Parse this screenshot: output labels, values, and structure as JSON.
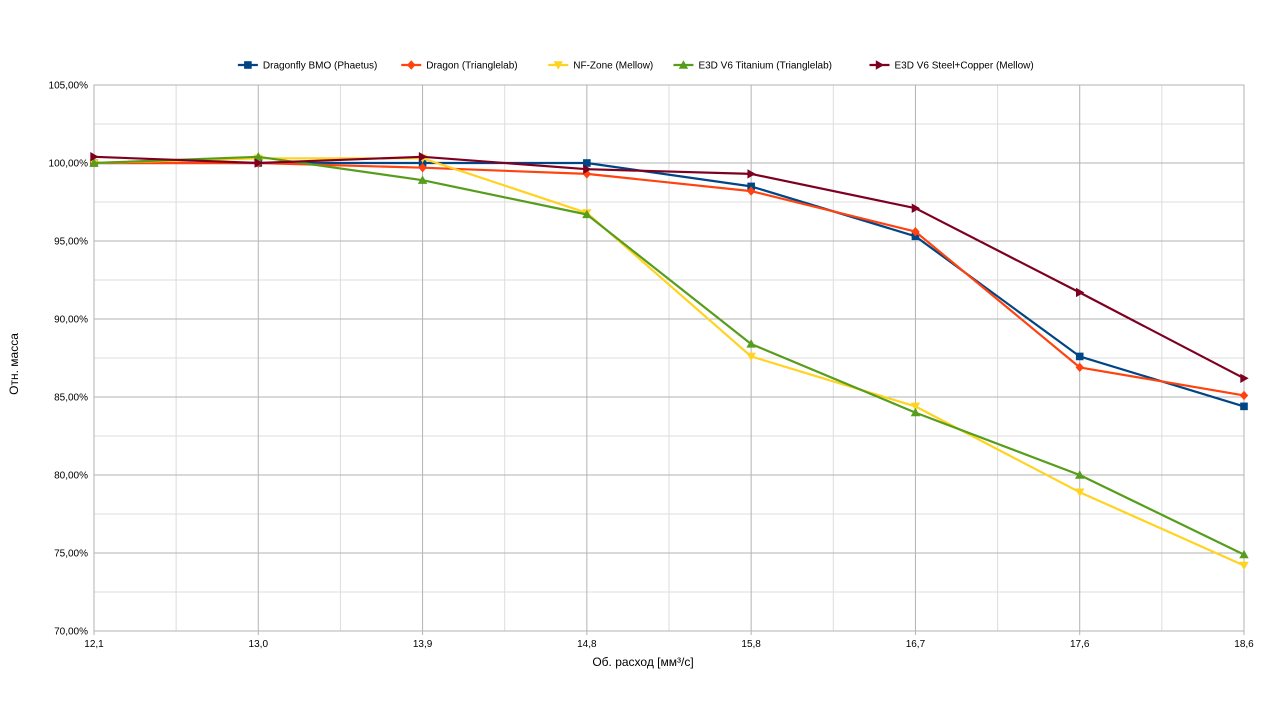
{
  "chart_data": {
    "type": "line",
    "xlabel": "Об. расход [мм³/с]",
    "ylabel": "Отн. масса",
    "x": [
      "12,1",
      "13,0",
      "13,9",
      "14,8",
      "15,8",
      "16,7",
      "17,6",
      "18,6"
    ],
    "ylim": [
      70,
      105
    ],
    "yticks": [
      "70,00%",
      "75,00%",
      "80,00%",
      "85,00%",
      "90,00%",
      "95,00%",
      "100,00%",
      "105,00%"
    ],
    "grid": true,
    "legend_position": "top",
    "series": [
      {
        "name": "Dragonfly BMO (Phaetus)",
        "color": "#004586",
        "marker": "square",
        "values": [
          100.0,
          100.0,
          100.0,
          100.0,
          98.5,
          95.3,
          87.6,
          84.4
        ]
      },
      {
        "name": "Dragon (Trianglelab)",
        "color": "#ff420e",
        "marker": "diamond",
        "values": [
          100.0,
          100.0,
          99.7,
          99.3,
          98.2,
          95.6,
          86.9,
          85.1
        ]
      },
      {
        "name": "NF-Zone (Mellow)",
        "color": "#ffd320",
        "marker": "triangle-down",
        "values": [
          100.0,
          100.3,
          100.3,
          96.8,
          87.6,
          84.4,
          78.9,
          74.2
        ]
      },
      {
        "name": "E3D V6 Titanium (Trianglelab)",
        "color": "#579d1c",
        "marker": "triangle-up",
        "values": [
          100.0,
          100.4,
          98.9,
          96.7,
          88.4,
          84.0,
          80.0,
          74.9
        ]
      },
      {
        "name": "E3D V6 Steel+Copper (Mellow)",
        "color": "#7e0021",
        "marker": "triangle-right",
        "values": [
          100.4,
          100.0,
          100.4,
          99.6,
          99.3,
          97.1,
          91.7,
          86.2
        ]
      }
    ]
  }
}
